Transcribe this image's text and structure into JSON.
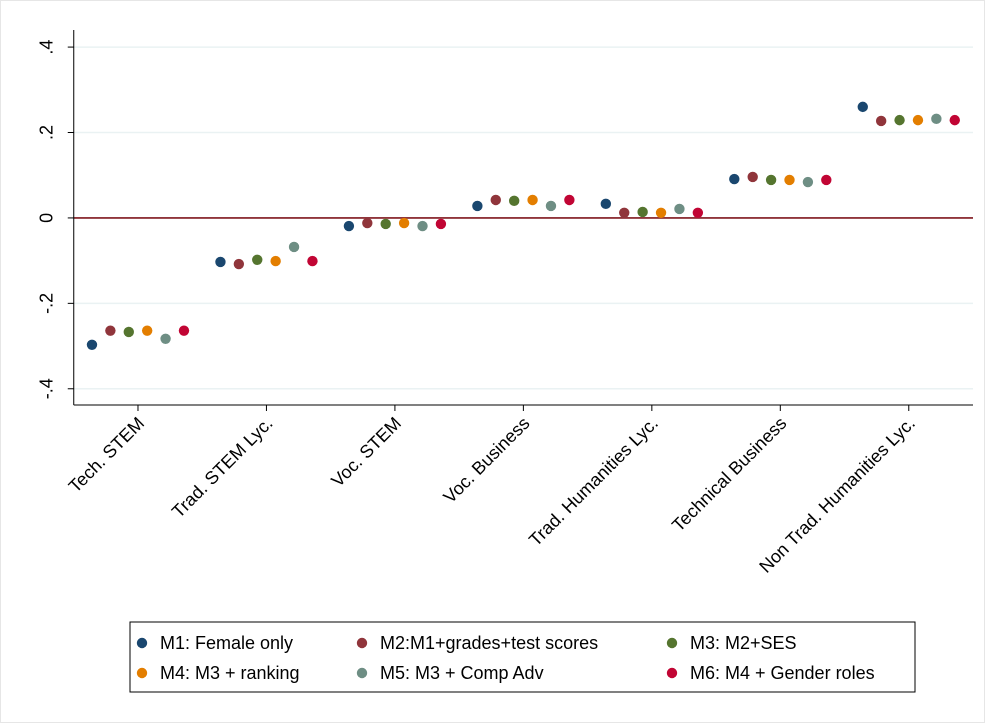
{
  "chart_data": {
    "type": "dot",
    "categories": [
      "Tech. STEM",
      "Trad. STEM Lyc.",
      "Voc. STEM",
      "Voc. Business",
      "Trad. Humanities Lyc.",
      "Technical Business",
      "Non Trad. Humanities Lyc."
    ],
    "series": [
      {
        "name": "M1: Female only",
        "color": "#1a476f",
        "values": [
          -0.297,
          -0.103,
          -0.019,
          0.028,
          0.033,
          0.091,
          0.26
        ]
      },
      {
        "name": "M2:M1+grades+test scores",
        "color": "#90353b",
        "values": [
          -0.264,
          -0.108,
          -0.012,
          0.042,
          0.012,
          0.096,
          0.227
        ]
      },
      {
        "name": "M3: M2+SES",
        "color": "#55752f",
        "values": [
          -0.267,
          -0.098,
          -0.014,
          0.04,
          0.014,
          0.089,
          0.229
        ]
      },
      {
        "name": "M4: M3 + ranking",
        "color": "#e37e00",
        "values": [
          -0.264,
          -0.101,
          -0.012,
          0.042,
          0.012,
          0.089,
          0.229
        ]
      },
      {
        "name": "M5: M3 + Comp Adv",
        "color": "#6e8e84",
        "values": [
          -0.283,
          -0.068,
          -0.019,
          0.028,
          0.021,
          0.084,
          0.232
        ]
      },
      {
        "name": "M6: M4 + Gender roles",
        "color": "#c10534",
        "values": [
          -0.264,
          -0.101,
          -0.014,
          0.042,
          0.012,
          0.089,
          0.229
        ]
      }
    ],
    "ylim": [
      -0.438,
      0.44
    ],
    "yticks": [
      {
        "value": -0.4,
        "label": "-.4"
      },
      {
        "value": -0.2,
        "label": "-.2"
      },
      0,
      {
        "value": 0.2,
        "label": ".2"
      },
      {
        "value": 0.4,
        "label": ".4"
      }
    ],
    "grid": true,
    "reference_line": {
      "value": 0,
      "color": "#90353b"
    },
    "legend": "bottom"
  }
}
